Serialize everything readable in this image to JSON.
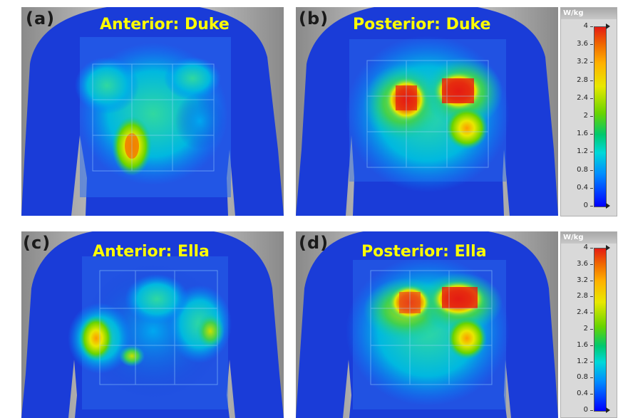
{
  "panels": [
    {
      "tag": "(a)",
      "title": "Anterior: Duke"
    },
    {
      "tag": "(b)",
      "title": "Posterior: Duke"
    },
    {
      "tag": "(c)",
      "title": "Anterior: Ella"
    },
    {
      "tag": "(d)",
      "title": "Posterior: Ella"
    }
  ],
  "legend": {
    "unit": "W/kg",
    "ticks": [
      "4",
      "3.6",
      "3.2",
      "2.8",
      "2.4",
      "2",
      "1.6",
      "1.2",
      "0.8",
      "0.4",
      "0"
    ]
  },
  "colors": {
    "background_gray": "#c8c8c8",
    "body_blue": "#1a3cd8",
    "title_yellow": "#ffff00",
    "colormap": [
      "#0000ff",
      "#008cff",
      "#00d8d8",
      "#00c86e",
      "#68d400",
      "#e8e800",
      "#ffb000",
      "#f06b00",
      "#e41b13"
    ]
  }
}
